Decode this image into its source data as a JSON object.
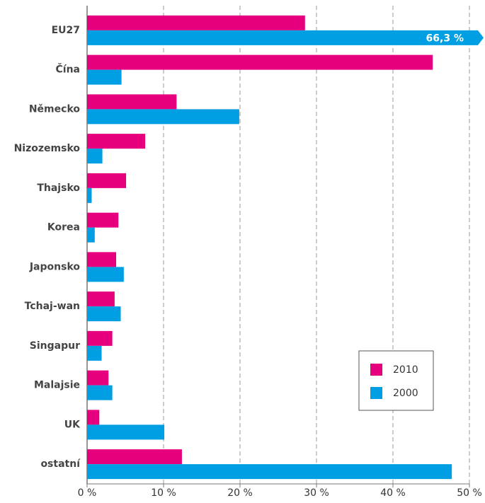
{
  "chart_data": {
    "type": "bar",
    "orientation": "horizontal",
    "categories": [
      "EU27",
      "Čína",
      "Německo",
      "Nizozemsko",
      "Thajsko",
      "Korea",
      "Japonsko",
      "Tchaj-wan",
      "Singapur",
      "Malajsie",
      "UK",
      "ostatní"
    ],
    "series": [
      {
        "name": "2010",
        "color": "#e6007e",
        "values": [
          28.5,
          45.2,
          11.7,
          7.6,
          5.1,
          4.1,
          3.8,
          3.6,
          3.3,
          2.8,
          1.6,
          12.4
        ]
      },
      {
        "name": "2000",
        "color": "#009fe3",
        "values": [
          66.3,
          4.5,
          19.9,
          2.0,
          0.6,
          1.0,
          4.8,
          4.4,
          1.9,
          3.3,
          10.1,
          47.7
        ],
        "value_labels": [
          "66,3 %",
          null,
          null,
          null,
          null,
          null,
          null,
          null,
          null,
          null,
          null,
          null
        ]
      }
    ],
    "xlim": [
      0,
      50
    ],
    "xticks": [
      {
        "value": 0,
        "label": "0 %"
      },
      {
        "value": 10,
        "label": "10 %"
      },
      {
        "value": 20,
        "label": "20 %"
      },
      {
        "value": 30,
        "label": "30 %"
      },
      {
        "value": 40,
        "label": "40 %"
      },
      {
        "value": 50,
        "label": "50 %"
      }
    ],
    "grid": true,
    "legend": "lower right"
  }
}
